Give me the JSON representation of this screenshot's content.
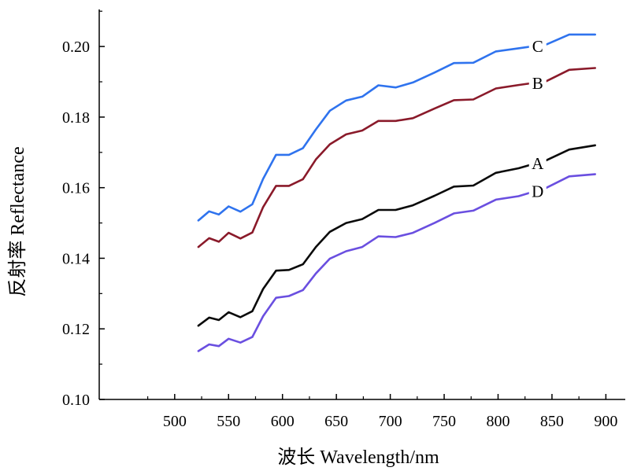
{
  "chart_data": {
    "type": "line",
    "title": "",
    "xlabel": "波长 Wavelength/nm",
    "ylabel": "反射率 Reflectance",
    "xlim": [
      430,
      918
    ],
    "ylim": [
      0.1,
      0.2105
    ],
    "x_ticks": [
      500,
      550,
      600,
      650,
      700,
      750,
      800,
      850,
      900
    ],
    "x_tick_labels": [
      "500",
      "550",
      "600",
      "650",
      "700",
      "750",
      "800",
      "850",
      "900"
    ],
    "y_ticks": [
      0.1,
      0.12,
      0.14,
      0.16,
      0.18,
      0.2
    ],
    "y_tick_labels": [
      "0.10",
      "0.12",
      "0.14",
      "0.16",
      "0.18",
      "0.20"
    ],
    "grid": false,
    "x": [
      522,
      532,
      541,
      550,
      561,
      572,
      582,
      594,
      606,
      619,
      631,
      644,
      659,
      674,
      689,
      705,
      721,
      741,
      759,
      777,
      798,
      819,
      845,
      866,
      890
    ],
    "series": [
      {
        "name": "C",
        "color": "#2f73ee",
        "values": [
          0.1507,
          0.1533,
          0.1524,
          0.1547,
          0.1532,
          0.1553,
          0.1625,
          0.1693,
          0.1693,
          0.1712,
          0.1765,
          0.1818,
          0.1847,
          0.1858,
          0.189,
          0.1884,
          0.1898,
          0.1926,
          0.1953,
          0.1954,
          0.1986,
          0.1995,
          0.2006,
          0.2034,
          0.2034
        ]
      },
      {
        "name": "B",
        "color": "#8a1a2a",
        "values": [
          0.1432,
          0.1457,
          0.1447,
          0.1472,
          0.1456,
          0.1473,
          0.1545,
          0.1605,
          0.1605,
          0.1624,
          0.168,
          0.1723,
          0.1751,
          0.1762,
          0.1789,
          0.1789,
          0.1797,
          0.1824,
          0.1848,
          0.185,
          0.1881,
          0.1891,
          0.1902,
          0.1934,
          0.1939
        ]
      },
      {
        "name": "A",
        "color": "#0a0a0a",
        "values": [
          0.1209,
          0.1232,
          0.1225,
          0.1247,
          0.1233,
          0.125,
          0.1313,
          0.1365,
          0.1367,
          0.1383,
          0.1432,
          0.1475,
          0.15,
          0.1511,
          0.1537,
          0.1537,
          0.155,
          0.1577,
          0.1603,
          0.1606,
          0.1642,
          0.1655,
          0.1678,
          0.1708,
          0.172
        ]
      },
      {
        "name": "D",
        "color": "#6a4fe0",
        "values": [
          0.1137,
          0.1156,
          0.1151,
          0.1172,
          0.1161,
          0.1177,
          0.1236,
          0.1288,
          0.1293,
          0.131,
          0.1357,
          0.1399,
          0.142,
          0.1432,
          0.1462,
          0.146,
          0.1472,
          0.15,
          0.1527,
          0.1535,
          0.1566,
          0.1576,
          0.16,
          0.1632,
          0.1638
        ]
      }
    ]
  }
}
